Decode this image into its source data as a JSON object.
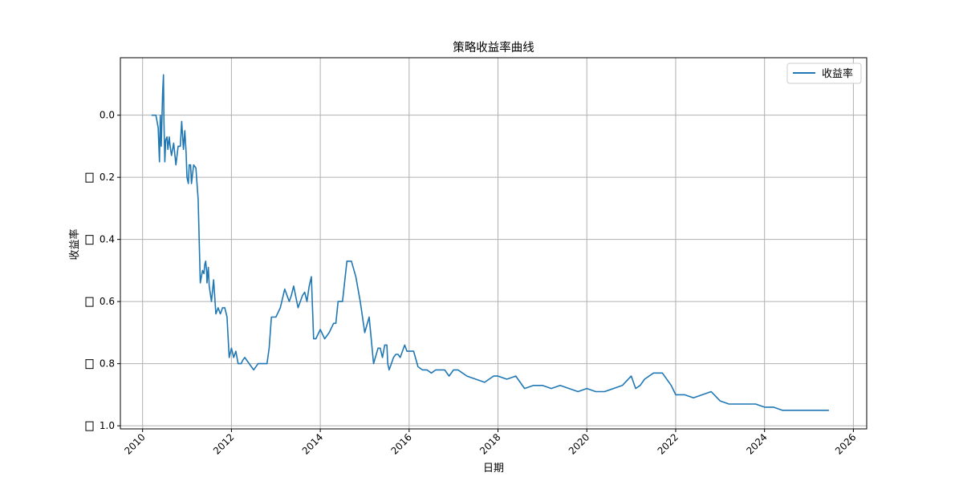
{
  "chart_data": {
    "type": "line",
    "title": "策略收益率曲线",
    "xlabel": "日期",
    "ylabel": "收益率",
    "xlim": [
      2009.5,
      2026.3
    ],
    "ylim": [
      -1.01,
      0.185
    ],
    "x_ticks": [
      2010,
      2012,
      2014,
      2016,
      2018,
      2020,
      2022,
      2024,
      2026
    ],
    "y_ticks": [
      {
        "value": 0.0,
        "label": "0.0",
        "minus_glyph": false
      },
      {
        "value": -0.2,
        "label": "0.2",
        "minus_glyph": true
      },
      {
        "value": -0.4,
        "label": "0.4",
        "minus_glyph": true
      },
      {
        "value": -0.6,
        "label": "0.6",
        "minus_glyph": true
      },
      {
        "value": -0.8,
        "label": "0.8",
        "minus_glyph": true
      },
      {
        "value": -1.0,
        "label": "1.0",
        "minus_glyph": true
      }
    ],
    "grid": true,
    "legend": {
      "position": "top-right",
      "entries": [
        "收益率"
      ]
    },
    "colors": {
      "series": "#1f77b4",
      "grid": "#b0b0b0",
      "axes": "#000000"
    },
    "series": [
      {
        "name": "收益率",
        "x": [
          2010.2,
          2010.3,
          2010.35,
          2010.38,
          2010.4,
          2010.42,
          2010.45,
          2010.47,
          2010.48,
          2010.5,
          2010.52,
          2010.55,
          2010.57,
          2010.6,
          2010.62,
          2010.65,
          2010.7,
          2010.75,
          2010.8,
          2010.85,
          2010.88,
          2010.92,
          2010.95,
          2010.98,
          2011.0,
          2011.03,
          2011.05,
          2011.08,
          2011.1,
          2011.15,
          2011.2,
          2011.25,
          2011.3,
          2011.35,
          2011.38,
          2011.4,
          2011.42,
          2011.44,
          2011.45,
          2011.48,
          2011.5,
          2011.55,
          2011.6,
          2011.65,
          2011.7,
          2011.75,
          2011.8,
          2011.85,
          2011.9,
          2011.95,
          2012.0,
          2012.05,
          2012.1,
          2012.15,
          2012.2,
          2012.22,
          2012.25,
          2012.3,
          2012.4,
          2012.5,
          2012.6,
          2012.7,
          2012.8,
          2012.85,
          2012.9,
          2012.95,
          2013.0,
          2013.1,
          2013.2,
          2013.3,
          2013.35,
          2013.4,
          2013.5,
          2013.6,
          2013.65,
          2013.7,
          2013.75,
          2013.8,
          2013.85,
          2013.9,
          2014.0,
          2014.1,
          2014.2,
          2014.3,
          2014.35,
          2014.4,
          2014.45,
          2014.5,
          2014.6,
          2014.7,
          2014.8,
          2014.9,
          2015.0,
          2015.1,
          2015.2,
          2015.3,
          2015.35,
          2015.4,
          2015.45,
          2015.5,
          2015.52,
          2015.55,
          2015.6,
          2015.65,
          2015.7,
          2015.75,
          2015.8,
          2015.85,
          2015.9,
          2015.95,
          2016.0,
          2016.1,
          2016.2,
          2016.3,
          2016.4,
          2016.5,
          2016.6,
          2016.7,
          2016.8,
          2016.9,
          2017.0,
          2017.1,
          2017.2,
          2017.3,
          2017.5,
          2017.7,
          2017.9,
          2018.0,
          2018.2,
          2018.4,
          2018.6,
          2018.8,
          2019.0,
          2019.2,
          2019.4,
          2019.6,
          2019.8,
          2020.0,
          2020.2,
          2020.4,
          2020.6,
          2020.8,
          2021.0,
          2021.1,
          2021.2,
          2021.3,
          2021.5,
          2021.7,
          2021.9,
          2022.0,
          2022.1,
          2022.2,
          2022.4,
          2022.6,
          2022.8,
          2023.0,
          2023.2,
          2023.4,
          2023.6,
          2023.8,
          2024.0,
          2024.2,
          2024.4,
          2024.6,
          2024.8,
          2025.0,
          2025.2,
          2025.45
        ],
        "y": [
          0.0,
          0.0,
          -0.04,
          -0.15,
          0.0,
          -0.1,
          0.07,
          0.13,
          -0.02,
          -0.15,
          -0.08,
          -0.07,
          -0.11,
          -0.07,
          -0.1,
          -0.13,
          -0.09,
          -0.16,
          -0.1,
          -0.1,
          -0.02,
          -0.11,
          -0.05,
          -0.12,
          -0.2,
          -0.22,
          -0.16,
          -0.16,
          -0.22,
          -0.16,
          -0.17,
          -0.27,
          -0.54,
          -0.5,
          -0.51,
          -0.48,
          -0.47,
          -0.5,
          -0.54,
          -0.49,
          -0.55,
          -0.6,
          -0.53,
          -0.64,
          -0.62,
          -0.64,
          -0.62,
          -0.62,
          -0.65,
          -0.78,
          -0.75,
          -0.78,
          -0.76,
          -0.8,
          -0.8,
          -0.8,
          -0.79,
          -0.78,
          -0.8,
          -0.82,
          -0.8,
          -0.8,
          -0.8,
          -0.75,
          -0.65,
          -0.65,
          -0.65,
          -0.62,
          -0.56,
          -0.6,
          -0.58,
          -0.55,
          -0.62,
          -0.58,
          -0.57,
          -0.6,
          -0.55,
          -0.52,
          -0.72,
          -0.72,
          -0.69,
          -0.72,
          -0.7,
          -0.67,
          -0.67,
          -0.6,
          -0.6,
          -0.6,
          -0.47,
          -0.47,
          -0.52,
          -0.6,
          -0.7,
          -0.65,
          -0.8,
          -0.75,
          -0.75,
          -0.78,
          -0.74,
          -0.74,
          -0.8,
          -0.82,
          -0.8,
          -0.78,
          -0.77,
          -0.77,
          -0.78,
          -0.76,
          -0.74,
          -0.76,
          -0.76,
          -0.76,
          -0.81,
          -0.82,
          -0.82,
          -0.83,
          -0.82,
          -0.82,
          -0.82,
          -0.84,
          -0.82,
          -0.82,
          -0.83,
          -0.84,
          -0.85,
          -0.86,
          -0.84,
          -0.84,
          -0.85,
          -0.84,
          -0.88,
          -0.87,
          -0.87,
          -0.88,
          -0.87,
          -0.88,
          -0.89,
          -0.88,
          -0.89,
          -0.89,
          -0.88,
          -0.87,
          -0.84,
          -0.88,
          -0.87,
          -0.85,
          -0.83,
          -0.83,
          -0.87,
          -0.9,
          -0.9,
          -0.9,
          -0.91,
          -0.9,
          -0.89,
          -0.92,
          -0.93,
          -0.93,
          -0.93,
          -0.93,
          -0.94,
          -0.94,
          -0.95,
          -0.95,
          -0.95,
          -0.95,
          -0.95,
          -0.95
        ]
      }
    ]
  }
}
